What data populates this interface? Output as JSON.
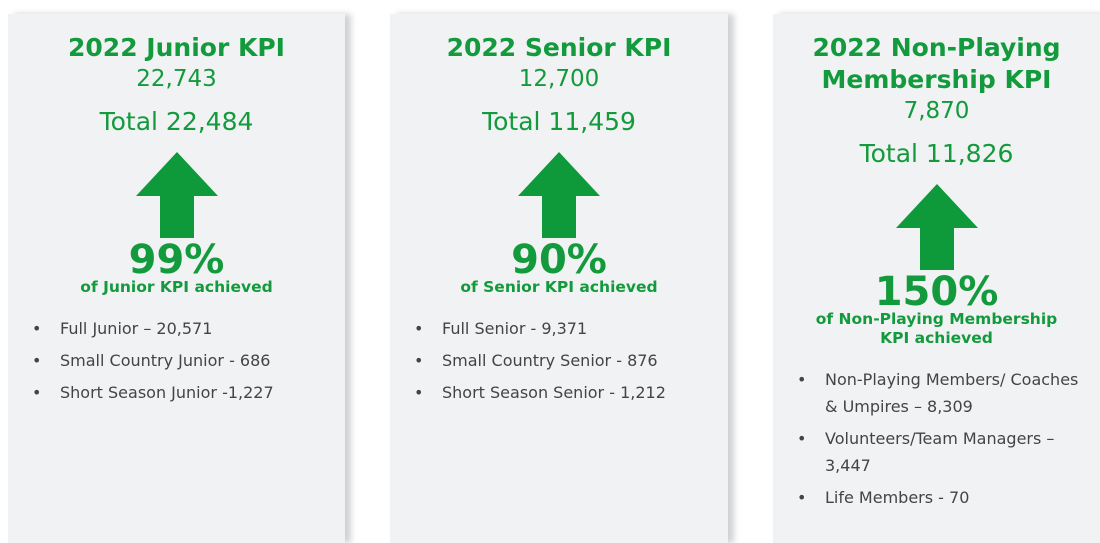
{
  "cards": [
    {
      "title": "2022 Junior KPI",
      "kpi": "22,743",
      "total": "Total 22,484",
      "percent": "99%",
      "caption": "of Junior KPI achieved",
      "items": [
        "Full Junior – 20,571",
        "Small Country Junior - 686",
        "Short Season Junior -1,227"
      ]
    },
    {
      "title": "2022 Senior KPI",
      "kpi": "12,700",
      "total": "Total 11,459",
      "percent": "90%",
      "caption": "of Senior KPI achieved",
      "items": [
        "Full Senior - 9,371",
        "Small Country Senior - 876",
        "Short Season Senior - 1,212"
      ]
    },
    {
      "title": "2022 Non-Playing Membership KPI",
      "kpi": "7,870",
      "total": "Total 11,826",
      "percent": "150%",
      "caption": "of Non-Playing Membership KPI achieved",
      "items": [
        "Non-Playing Members/ Coaches & Umpires – 8,309",
        "Volunteers/Team Managers – 3,447",
        "Life Members - 70"
      ]
    }
  ]
}
